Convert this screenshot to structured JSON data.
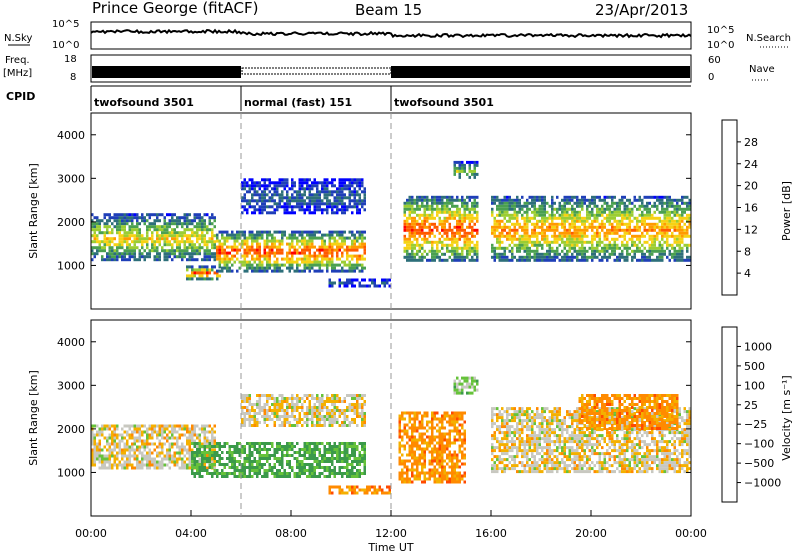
{
  "title": {
    "left": "Prince George (fitACF)",
    "center": "Beam 15",
    "right": "23/Apr/2013"
  },
  "time_axis": {
    "label": "Time UT",
    "ticks": [
      "00:00",
      "04:00",
      "08:00",
      "12:00",
      "16:00",
      "20:00",
      "00:00"
    ],
    "range_hours": [
      0,
      24
    ]
  },
  "strip_labels": {
    "nsky": "N.Sky",
    "nsearch": "N.Search",
    "freq_top": "Freq.",
    "freq_unit": "[MHz]",
    "nave": "Nave",
    "cpid": "CPID",
    "noise_tick_top": "10^5",
    "noise_tick_bottom": "10^0",
    "freq_tick_top": "18",
    "freq_tick_bottom": "8",
    "nave_tick_top": "60",
    "nave_tick_bottom": "0"
  },
  "cpid_segments": [
    {
      "label": "twofsound 3501",
      "start_hour": 0,
      "end_hour": 6
    },
    {
      "label": "normal (fast) 151",
      "start_hour": 6,
      "end_hour": 12
    },
    {
      "label": "twofsound 3501",
      "start_hour": 12,
      "end_hour": 24
    }
  ],
  "colorbars": {
    "power": {
      "label": "Power [dB]",
      "ticks": [
        "28",
        "24",
        "20",
        "16",
        "12",
        "8",
        "4"
      ],
      "colors": [
        "#0000ff",
        "#1f3fb8",
        "#2d6f7a",
        "#4aa050",
        "#9bcd33",
        "#f6d214",
        "#ff9a00",
        "#ff5a00",
        "#ff0000"
      ]
    },
    "velocity": {
      "label": "Velocity [m s⁻¹]",
      "ticks": [
        "1000",
        "500",
        "100",
        "25",
        "−25",
        "−100",
        "−500",
        "−1000"
      ],
      "colors": [
        "#1c3fa8",
        "#2d8a8f",
        "#3b9a4a",
        "#66c23a",
        "#c8c8c0",
        "#c8c8c0",
        "#f4b000",
        "#ff8a00",
        "#ff4a00",
        "#ff0000"
      ]
    }
  },
  "chart_data": [
    {
      "type": "heatmap",
      "title": "",
      "quantity": "Power [dB]",
      "ylabel": "Slant Range [km]",
      "xlabel": "Time UT",
      "yticks": [
        "1000",
        "2000",
        "3000",
        "4000"
      ],
      "ylim": [
        0,
        4500
      ],
      "xlim_hours": [
        0,
        24
      ],
      "regions": [
        {
          "t": [
            0.0,
            5.0
          ],
          "range_km": [
            1100,
            2200
          ],
          "peak_db": 20
        },
        {
          "t": [
            3.8,
            5.2
          ],
          "range_km": [
            700,
            1000
          ],
          "peak_db": 28
        },
        {
          "t": [
            5.0,
            11.0
          ],
          "range_km": [
            900,
            1800
          ],
          "peak_db": 28
        },
        {
          "t": [
            6.0,
            11.0
          ],
          "range_km": [
            2200,
            3000
          ],
          "peak_db": 8
        },
        {
          "t": [
            9.5,
            12.0
          ],
          "range_km": [
            550,
            700
          ],
          "peak_db": 8
        },
        {
          "t": [
            12.5,
            15.5
          ],
          "range_km": [
            1100,
            2600
          ],
          "peak_db": 28
        },
        {
          "t": [
            14.5,
            15.5
          ],
          "range_km": [
            3000,
            3400
          ],
          "peak_db": 16
        },
        {
          "t": [
            16.0,
            24.0
          ],
          "range_km": [
            1100,
            2600
          ],
          "peak_db": 24
        }
      ]
    },
    {
      "type": "heatmap",
      "title": "",
      "quantity": "Velocity [m s⁻¹]",
      "ylabel": "Slant Range [km]",
      "xlabel": "Time UT",
      "yticks": [
        "1000",
        "2000",
        "3000",
        "4000"
      ],
      "ylim": [
        0,
        4500
      ],
      "xlim_hours": [
        0,
        24
      ],
      "regions": [
        {
          "t": [
            0.0,
            5.0
          ],
          "range_km": [
            1100,
            2100
          ],
          "velocity_ms": 0
        },
        {
          "t": [
            4.0,
            11.0
          ],
          "range_km": [
            900,
            1700
          ],
          "velocity_ms": 300
        },
        {
          "t": [
            6.0,
            11.0
          ],
          "range_km": [
            2100,
            2800
          ],
          "velocity_ms": 0
        },
        {
          "t": [
            9.5,
            12.0
          ],
          "range_km": [
            550,
            700
          ],
          "velocity_ms": -150
        },
        {
          "t": [
            12.3,
            15.0
          ],
          "range_km": [
            800,
            2400
          ],
          "velocity_ms": -150
        },
        {
          "t": [
            14.5,
            15.5
          ],
          "range_km": [
            2800,
            3200
          ],
          "velocity_ms": 150
        },
        {
          "t": [
            16.0,
            24.0
          ],
          "range_km": [
            1000,
            2500
          ],
          "velocity_ms": 0
        },
        {
          "t": [
            19.5,
            23.5
          ],
          "range_km": [
            2000,
            2800
          ],
          "velocity_ms": -150
        }
      ]
    }
  ]
}
